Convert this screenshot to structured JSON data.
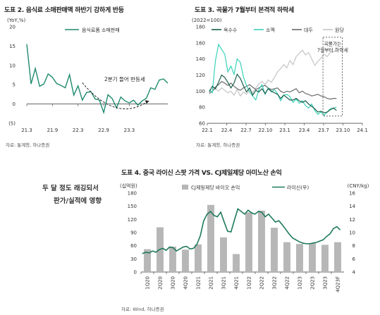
{
  "side_note": {
    "line1": "두 달 정도 래깅되서",
    "line2": "판가/실적에 영향"
  },
  "chart_data": [
    {
      "id": "fig2",
      "type": "line",
      "title": "도표 2. 음식료 소매판매액 하반기 강하게 반등",
      "unit_label": "(YoY,%)",
      "source": "자료: 통계청, 하나증권",
      "series": [
        {
          "name": "음식료품 소매판매",
          "color": "#1f8a6e",
          "values": [
            15.5,
            5.2,
            9.2,
            4.6,
            5.2,
            7.8,
            6.9,
            5.3,
            4.8,
            4.2,
            7.6,
            2.3,
            4.7,
            1.0,
            3.0,
            3.2,
            1.3,
            1.0,
            -2.2,
            2.4,
            1.4,
            -1.0,
            1.8,
            0.8,
            0.3,
            1.0,
            -0.3,
            0.8,
            1.5,
            4.2,
            3.8,
            6.2,
            6.5,
            5.4
          ]
        }
      ],
      "x_ticks": [
        "21.3",
        "21.9",
        "22.3",
        "22.9",
        "23.3"
      ],
      "x_tick_index": [
        0,
        6,
        12,
        18,
        24
      ],
      "ylim": [
        -5,
        20
      ],
      "yticks": [
        -5,
        0,
        5,
        10,
        15,
        20
      ],
      "ytick_labels": [
        "(5)",
        "0",
        "5",
        "10",
        "15",
        "20"
      ],
      "annotation": "2분기 들어 반등세"
    },
    {
      "id": "fig3",
      "type": "line",
      "title": "도표 3. 곡물가 7월부터 본격적 하락세",
      "unit_label": "(2022=100)",
      "source": "자료: 통계청, 하나증권",
      "x_ticks": [
        "22.1",
        "22.4",
        "22.7",
        "22.10",
        "23.1",
        "23.4",
        "23.7",
        "23.10",
        "24.1"
      ],
      "xlim": [
        0,
        24
      ],
      "ylim": [
        60,
        180
      ],
      "yticks": [
        60,
        80,
        100,
        120,
        140,
        160,
        180
      ],
      "annotation": "곡물가는\n7월부터 하락세",
      "series": [
        {
          "name": "옥수수",
          "color": "#1a5e4a",
          "x_start": 0.3,
          "x_end": 20.0,
          "values": [
            99,
            106,
            103,
            111,
            120,
            117,
            111,
            104,
            110,
            121,
            116,
            107,
            99,
            104,
            95,
            101,
            99,
            103,
            97,
            103,
            100,
            98,
            96,
            91,
            95,
            92,
            89,
            89,
            91,
            88,
            86,
            88,
            84,
            81,
            78,
            74,
            75,
            73,
            74,
            77,
            79,
            76
          ]
        },
        {
          "name": "소맥",
          "color": "#3ad1b8",
          "x_start": 0.3,
          "x_end": 20.0,
          "values": [
            102,
            98,
            138,
            158,
            152,
            146,
            124,
            131,
            121,
            140,
            136,
            118,
            107,
            99,
            94,
            89,
            102,
            108,
            96,
            104,
            99,
            102,
            97,
            88,
            95,
            96,
            93,
            86,
            90,
            85,
            88,
            82,
            79,
            84,
            76,
            71,
            74,
            70,
            74,
            78,
            79,
            80
          ]
        },
        {
          "name": "대두",
          "color": "#6b6b6b",
          "x_start": 0.3,
          "x_end": 20.0,
          "values": [
            97,
            100,
            105,
            108,
            112,
            110,
            107,
            110,
            106,
            103,
            101,
            104,
            106,
            108,
            105,
            102,
            104,
            106,
            107,
            104,
            102,
            103,
            104,
            100,
            98,
            100,
            99,
            101,
            103,
            98,
            100,
            97,
            96,
            94,
            95,
            96,
            94,
            93,
            91,
            90,
            91,
            91
          ]
        },
        {
          "name": "원당",
          "color": "#c4c4c4",
          "x_start": 0.3,
          "x_end": 20.0,
          "values": [
            97,
            100,
            103,
            100,
            104,
            101,
            98,
            100,
            95,
            102,
            94,
            99,
            96,
            101,
            98,
            104,
            109,
            112,
            108,
            114,
            111,
            117,
            124,
            128,
            133,
            129,
            138,
            133,
            143,
            147,
            151,
            145,
            148,
            140,
            132,
            137,
            141,
            146,
            143,
            148,
            149,
            150
          ]
        }
      ]
    },
    {
      "id": "fig4",
      "type": "bar+line",
      "title": "도표 4. 중국 라이신 스팟 가격 VS. CJ제일제당 아미노산 손익",
      "left_unit": "(십억원)",
      "right_unit": "(CNY/kg)",
      "source": "자료: Wind, 하나증권",
      "categories": [
        "1Q20",
        "2Q20",
        "3Q20",
        "4Q20",
        "1Q21",
        "2Q21",
        "3Q21",
        "4Q21",
        "1Q22",
        "2Q22",
        "3Q22",
        "4Q22",
        "1Q23",
        "2Q23",
        "3Q23",
        "4Q23F"
      ],
      "ylim_left": [
        0,
        180
      ],
      "yticks_left": [
        0,
        30,
        60,
        90,
        120,
        150,
        180
      ],
      "ylim_right": [
        4,
        16
      ],
      "yticks_right": [
        4,
        6,
        8,
        10,
        12,
        14,
        16
      ],
      "bar_series": {
        "name": "CJ제일제당 바이오 손익",
        "color": "#b7b7b7",
        "values": [
          52,
          102,
          58,
          51,
          63,
          153,
          79,
          41,
          136,
          140,
          101,
          68,
          64,
          66,
          62,
          68
        ]
      },
      "line_series": {
        "name": "라이신(우)",
        "color": "#1f7a5a",
        "x_start": 0.0,
        "x_end": 15.6,
        "values": [
          6.8,
          7.0,
          6.9,
          7.2,
          7.0,
          7.4,
          7.6,
          7.3,
          7.8,
          7.7,
          7.2,
          7.5,
          7.8,
          7.9,
          7.5,
          7.6,
          8.2,
          9.5,
          11.8,
          12.8,
          13.2,
          12.6,
          12.4,
          13.1,
          11.6,
          10.2,
          10.1,
          11.9,
          13.6,
          13.2,
          12.8,
          13.4,
          13.0,
          12.8,
          13.2,
          13.1,
          12.4,
          12.8,
          12.2,
          11.6,
          11.8,
          11.2,
          10.5,
          9.8,
          9.2,
          8.9,
          8.6,
          8.4,
          8.3,
          8.3,
          8.4,
          8.5,
          8.7,
          8.9,
          9.4,
          9.8,
          10.6,
          10.9,
          10.4
        ]
      }
    }
  ]
}
